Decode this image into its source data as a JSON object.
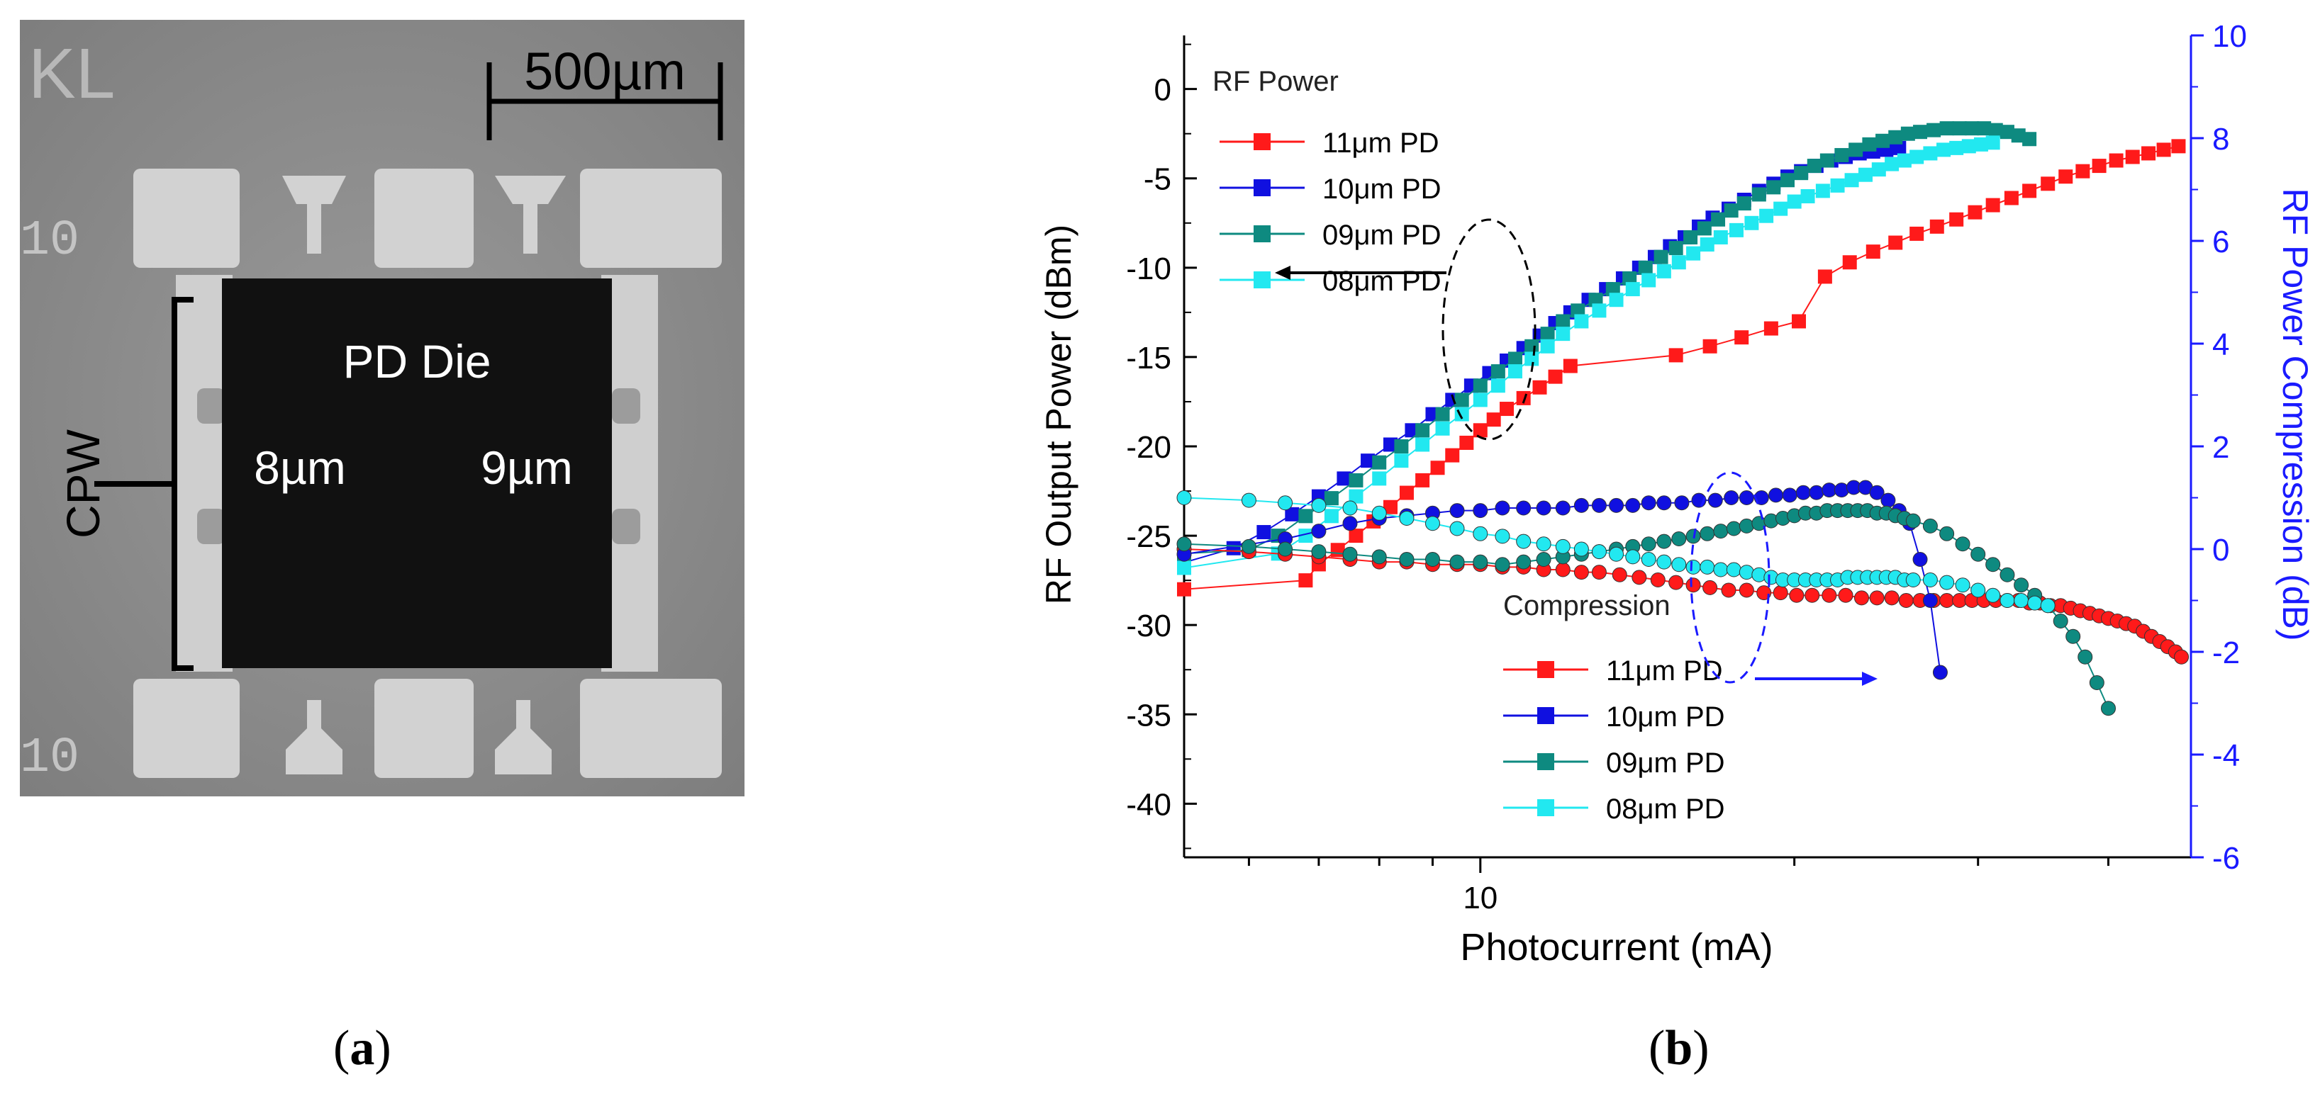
{
  "panel_a": {
    "scale_label": "500µm",
    "corner_text": "KL",
    "pad_label": "10",
    "die_label": "PD Die",
    "left_pd": "8µm",
    "right_pd": "9µm",
    "cpw_label": "CPW",
    "caption_letter": "a"
  },
  "panel_b": {
    "caption_letter": "b"
  },
  "colors": {
    "red": "#ff1a1a",
    "blue": "#1010e0",
    "teal": "#0e8a80",
    "cyan": "#22e8f0",
    "right_axis": "#1a1aff"
  },
  "chart_data": {
    "type": "scatter",
    "xlabel": "Photocurrent (mA)",
    "ylabel": "RF Output Power (dBm)",
    "y2label": "RF Power Compression (dB)",
    "xscale": "log",
    "xlim": [
      5.2,
      48
    ],
    "x_ticks": [
      10
    ],
    "ylim": [
      -43,
      3
    ],
    "y_ticks": [
      0,
      -5,
      -10,
      -15,
      -20,
      -25,
      -30,
      -35,
      -40
    ],
    "y2lim": [
      -6,
      10
    ],
    "y2_ticks": [
      10,
      8,
      6,
      4,
      2,
      0,
      -2,
      -4,
      -6
    ],
    "legend_power": {
      "title": "RF Power",
      "placement": "top-left"
    },
    "legend_compression": {
      "title": "Compression",
      "placement": "bottom-center"
    },
    "series": [
      {
        "name": "11μm PD",
        "group": "power",
        "axis": "left",
        "color": "#ff1a1a",
        "marker": "square",
        "x": [
          5.2,
          6.8,
          7.0,
          7.3,
          7.6,
          7.9,
          8.2,
          8.5,
          8.8,
          9.1,
          9.4,
          9.7,
          10.0,
          10.3,
          10.6,
          11.0,
          11.4,
          11.8,
          12.2,
          15.4,
          16.6,
          17.8,
          19.0,
          20.2,
          21.4,
          22.6,
          23.8,
          25.0,
          26.2,
          27.4,
          28.6,
          29.8,
          31.0,
          32.3,
          33.6,
          35.0,
          36.4,
          37.8,
          39.2,
          40.7,
          42.2,
          43.7,
          45.2,
          46.7
        ],
        "y": [
          -28.0,
          -27.5,
          -26.6,
          -25.8,
          -25.0,
          -24.2,
          -23.4,
          -22.6,
          -21.9,
          -21.2,
          -20.5,
          -19.8,
          -19.1,
          -18.5,
          -17.9,
          -17.3,
          -16.7,
          -16.1,
          -15.5,
          -14.9,
          -14.4,
          -13.9,
          -13.4,
          -13.0,
          -10.5,
          -9.7,
          -9.1,
          -8.6,
          -8.1,
          -7.7,
          -7.3,
          -6.9,
          -6.5,
          -6.1,
          -5.7,
          -5.3,
          -4.9,
          -4.6,
          -4.3,
          -4.0,
          -3.8,
          -3.6,
          -3.4,
          -3.2
        ]
      },
      {
        "name": "10μm PD",
        "group": "power",
        "axis": "left",
        "color": "#1010e0",
        "marker": "square",
        "x": [
          5.2,
          5.8,
          6.2,
          6.6,
          7.0,
          7.4,
          7.8,
          8.2,
          8.6,
          9.0,
          9.4,
          9.8,
          10.2,
          10.6,
          11.0,
          11.4,
          11.8,
          12.2,
          12.7,
          13.2,
          13.7,
          14.2,
          14.7,
          15.2,
          15.7,
          16.2,
          16.7,
          17.3,
          17.9,
          18.5,
          19.1,
          19.7,
          20.3,
          21.0,
          21.7,
          22.4,
          23.1,
          23.8,
          24.5,
          25.2
        ],
        "y": [
          -26.5,
          -25.7,
          -24.8,
          -23.8,
          -22.8,
          -21.8,
          -20.8,
          -19.9,
          -19.1,
          -18.2,
          -17.4,
          -16.6,
          -15.9,
          -15.2,
          -14.5,
          -13.8,
          -13.1,
          -12.5,
          -11.8,
          -11.2,
          -10.6,
          -10.0,
          -9.4,
          -8.8,
          -8.3,
          -7.7,
          -7.2,
          -6.7,
          -6.2,
          -5.7,
          -5.3,
          -4.9,
          -4.6,
          -4.3,
          -4.0,
          -3.8,
          -3.6,
          -3.5,
          -3.4,
          -3.3
        ]
      },
      {
        "name": "09μm PD",
        "group": "power",
        "axis": "left",
        "color": "#0e8a80",
        "marker": "square",
        "x": [
          5.2,
          6.0,
          6.4,
          6.8,
          7.2,
          7.6,
          8.0,
          8.4,
          8.8,
          9.2,
          9.6,
          10.0,
          10.4,
          10.8,
          11.2,
          11.6,
          12.0,
          12.4,
          12.9,
          13.4,
          13.9,
          14.4,
          14.9,
          15.4,
          15.9,
          16.4,
          16.9,
          17.4,
          17.9,
          18.5,
          19.1,
          19.7,
          20.3,
          20.9,
          21.5,
          22.2,
          22.9,
          23.6,
          24.3,
          25.0,
          25.7,
          26.4,
          27.2,
          28.0,
          28.8,
          29.6,
          30.4,
          31.2,
          32.0,
          32.8,
          33.6
        ],
        "y": [
          -26.0,
          -25.8,
          -25.0,
          -23.9,
          -22.9,
          -21.9,
          -20.9,
          -20.0,
          -19.1,
          -18.2,
          -17.4,
          -16.6,
          -15.8,
          -15.1,
          -14.4,
          -13.7,
          -13.0,
          -12.4,
          -11.8,
          -11.2,
          -10.6,
          -10.0,
          -9.4,
          -8.9,
          -8.3,
          -7.8,
          -7.3,
          -6.8,
          -6.4,
          -5.9,
          -5.5,
          -5.1,
          -4.7,
          -4.3,
          -4.0,
          -3.7,
          -3.4,
          -3.1,
          -2.9,
          -2.7,
          -2.5,
          -2.4,
          -2.3,
          -2.2,
          -2.2,
          -2.2,
          -2.2,
          -2.3,
          -2.4,
          -2.6,
          -2.8
        ]
      },
      {
        "name": "08μm PD",
        "group": "power",
        "axis": "left",
        "color": "#22e8f0",
        "marker": "square",
        "x": [
          5.2,
          6.4,
          6.8,
          7.2,
          7.6,
          8.0,
          8.4,
          8.8,
          9.2,
          9.6,
          10.0,
          10.4,
          10.8,
          11.2,
          11.6,
          12.0,
          12.5,
          13.0,
          13.5,
          14.0,
          14.5,
          15.0,
          15.5,
          16.0,
          16.5,
          17.0,
          17.6,
          18.2,
          18.8,
          19.4,
          20.0,
          20.6,
          21.3,
          22.0,
          22.7,
          23.4,
          24.1,
          24.8,
          25.5,
          26.2,
          27.0,
          27.8,
          28.6,
          29.4,
          30.2,
          31.0
        ],
        "y": [
          -26.8,
          -26.0,
          -25.0,
          -23.9,
          -22.8,
          -21.8,
          -20.8,
          -19.9,
          -19.0,
          -18.2,
          -17.4,
          -16.6,
          -15.8,
          -15.1,
          -14.4,
          -13.7,
          -13.0,
          -12.4,
          -11.8,
          -11.2,
          -10.7,
          -10.2,
          -9.7,
          -9.2,
          -8.7,
          -8.3,
          -7.9,
          -7.5,
          -7.1,
          -6.7,
          -6.3,
          -6.0,
          -5.7,
          -5.4,
          -5.1,
          -4.8,
          -4.5,
          -4.2,
          -4.0,
          -3.8,
          -3.6,
          -3.4,
          -3.3,
          -3.2,
          -3.1,
          -3.0
        ]
      },
      {
        "name": "11μm PD",
        "group": "compression",
        "axis": "right",
        "color": "#ff1a1a",
        "marker": "circle",
        "x": [
          5.2,
          6.0,
          6.5,
          7.0,
          7.5,
          8.0,
          8.5,
          9.0,
          9.5,
          10.0,
          10.5,
          11.0,
          11.5,
          12.0,
          12.5,
          13.0,
          13.6,
          14.2,
          14.8,
          15.4,
          16.0,
          16.6,
          17.3,
          18.0,
          18.7,
          19.4,
          20.1,
          20.8,
          21.6,
          22.4,
          23.2,
          24.0,
          24.8,
          25.6,
          26.4,
          27.2,
          28.0,
          28.8,
          29.6,
          30.4,
          31.2,
          32.0,
          32.8,
          33.6,
          34.4,
          35.2,
          36.0,
          36.8,
          37.6,
          38.4,
          39.2,
          40.0,
          40.8,
          41.6,
          42.4,
          43.2,
          44.0,
          44.8,
          45.6,
          46.4,
          47.0
        ],
        "y": [
          0.0,
          -0.05,
          -0.1,
          -0.15,
          -0.2,
          -0.25,
          -0.25,
          -0.3,
          -0.3,
          -0.3,
          -0.35,
          -0.35,
          -0.4,
          -0.4,
          -0.45,
          -0.45,
          -0.5,
          -0.55,
          -0.6,
          -0.65,
          -0.7,
          -0.75,
          -0.8,
          -0.8,
          -0.85,
          -0.85,
          -0.9,
          -0.9,
          -0.9,
          -0.9,
          -0.95,
          -0.95,
          -0.95,
          -1.0,
          -1.0,
          -1.0,
          -1.0,
          -1.0,
          -1.0,
          -1.0,
          -1.0,
          -1.0,
          -1.0,
          -1.05,
          -1.05,
          -1.1,
          -1.1,
          -1.15,
          -1.2,
          -1.25,
          -1.3,
          -1.35,
          -1.4,
          -1.45,
          -1.5,
          -1.6,
          -1.7,
          -1.8,
          -1.9,
          -2.0,
          -2.1
        ]
      },
      {
        "name": "10μm PD",
        "group": "compression",
        "axis": "right",
        "color": "#1010e0",
        "marker": "circle",
        "x": [
          5.2,
          6.5,
          7.0,
          7.5,
          8.0,
          8.5,
          9.0,
          9.5,
          10.0,
          10.5,
          11.0,
          11.5,
          12.0,
          12.5,
          13.0,
          13.5,
          14.0,
          14.5,
          15.0,
          15.6,
          16.2,
          16.8,
          17.4,
          18.0,
          18.6,
          19.2,
          19.8,
          20.4,
          21.0,
          21.6,
          22.2,
          22.8,
          23.4,
          24.0,
          24.6,
          25.2,
          25.8,
          26.4,
          27.0,
          27.6
        ],
        "y": [
          -0.1,
          0.2,
          0.35,
          0.5,
          0.6,
          0.65,
          0.7,
          0.75,
          0.75,
          0.8,
          0.8,
          0.8,
          0.8,
          0.85,
          0.85,
          0.85,
          0.85,
          0.9,
          0.9,
          0.9,
          0.95,
          0.95,
          1.0,
          1.0,
          1.0,
          1.05,
          1.05,
          1.1,
          1.1,
          1.15,
          1.15,
          1.2,
          1.2,
          1.1,
          0.95,
          0.75,
          0.5,
          -0.2,
          -1.0,
          -2.4
        ]
      },
      {
        "name": "09μm PD",
        "group": "compression",
        "axis": "right",
        "color": "#0e8a80",
        "marker": "circle",
        "x": [
          5.2,
          6.0,
          6.5,
          7.0,
          7.5,
          8.0,
          8.5,
          9.0,
          9.5,
          10.0,
          10.5,
          11.0,
          11.5,
          12.0,
          12.5,
          13.0,
          13.5,
          14.0,
          14.5,
          15.0,
          15.5,
          16.0,
          16.5,
          17.0,
          17.5,
          18.0,
          18.5,
          19.0,
          19.5,
          20.0,
          20.5,
          21.0,
          21.5,
          22.0,
          22.5,
          23.0,
          23.5,
          24.0,
          24.5,
          25.0,
          25.5,
          26.0,
          27.0,
          28.0,
          29.0,
          30.0,
          31.0,
          32.0,
          33.0,
          34.0,
          35.0,
          36.0,
          37.0,
          38.0,
          39.0,
          40.0
        ],
        "y": [
          0.1,
          0.05,
          0.0,
          -0.05,
          -0.1,
          -0.15,
          -0.2,
          -0.2,
          -0.25,
          -0.25,
          -0.3,
          -0.25,
          -0.2,
          -0.15,
          -0.1,
          -0.05,
          0.0,
          0.05,
          0.1,
          0.15,
          0.2,
          0.25,
          0.3,
          0.35,
          0.4,
          0.45,
          0.5,
          0.55,
          0.6,
          0.65,
          0.7,
          0.7,
          0.75,
          0.75,
          0.75,
          0.75,
          0.75,
          0.7,
          0.7,
          0.65,
          0.6,
          0.55,
          0.45,
          0.3,
          0.1,
          -0.1,
          -0.3,
          -0.5,
          -0.7,
          -0.9,
          -1.1,
          -1.4,
          -1.7,
          -2.1,
          -2.6,
          -3.1
        ]
      },
      {
        "name": "08μm PD",
        "group": "compression",
        "axis": "right",
        "color": "#22e8f0",
        "marker": "circle",
        "x": [
          5.2,
          6.0,
          6.5,
          7.0,
          7.5,
          8.0,
          8.5,
          9.0,
          9.5,
          10.0,
          10.5,
          11.0,
          11.5,
          12.0,
          12.5,
          13.0,
          13.5,
          14.0,
          14.5,
          15.0,
          15.5,
          16.0,
          16.5,
          17.0,
          17.5,
          18.0,
          18.5,
          19.0,
          19.5,
          20.0,
          20.5,
          21.0,
          21.5,
          22.0,
          22.5,
          23.0,
          23.5,
          24.0,
          24.5,
          25.0,
          25.5,
          26.0,
          27.0,
          28.0,
          29.0,
          30.0,
          31.0,
          32.0,
          33.0,
          34.0,
          35.0
        ],
        "y": [
          1.0,
          0.95,
          0.9,
          0.85,
          0.8,
          0.7,
          0.6,
          0.5,
          0.4,
          0.3,
          0.25,
          0.15,
          0.1,
          0.05,
          0.0,
          -0.05,
          -0.1,
          -0.15,
          -0.2,
          -0.25,
          -0.3,
          -0.35,
          -0.35,
          -0.4,
          -0.4,
          -0.45,
          -0.5,
          -0.55,
          -0.6,
          -0.6,
          -0.6,
          -0.6,
          -0.6,
          -0.6,
          -0.55,
          -0.55,
          -0.55,
          -0.55,
          -0.55,
          -0.55,
          -0.6,
          -0.6,
          -0.6,
          -0.65,
          -0.7,
          -0.8,
          -0.9,
          -1.0,
          -1.0,
          -1.05,
          -1.1
        ]
      }
    ]
  }
}
